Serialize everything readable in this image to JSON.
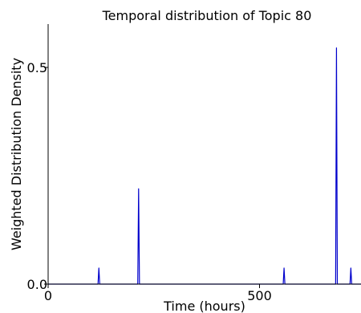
{
  "chart_data": {
    "type": "line",
    "title": "Temporal distribution of Topic 80",
    "xlabel": "Time (hours)",
    "ylabel": "Weighted Distribution Density",
    "xlim": [
      0,
      740
    ],
    "ylim": [
      0,
      0.6
    ],
    "xticks": [
      0,
      500
    ],
    "xtick_labels": [
      "0",
      "500"
    ],
    "yticks": [
      0.0,
      0.5
    ],
    "ytick_labels": [
      "0.0",
      "0.5"
    ],
    "grid": false,
    "series": [
      {
        "color": "#0000cc",
        "x": [
          0,
          118,
          120,
          122,
          212,
          214,
          216,
          556,
          558,
          560,
          680,
          682,
          684,
          714,
          716,
          718,
          740
        ],
        "y": [
          0,
          0,
          0.037,
          0,
          0,
          0.22,
          0,
          0,
          0.037,
          0,
          0,
          0.545,
          0,
          0,
          0.037,
          0,
          0
        ]
      }
    ]
  }
}
